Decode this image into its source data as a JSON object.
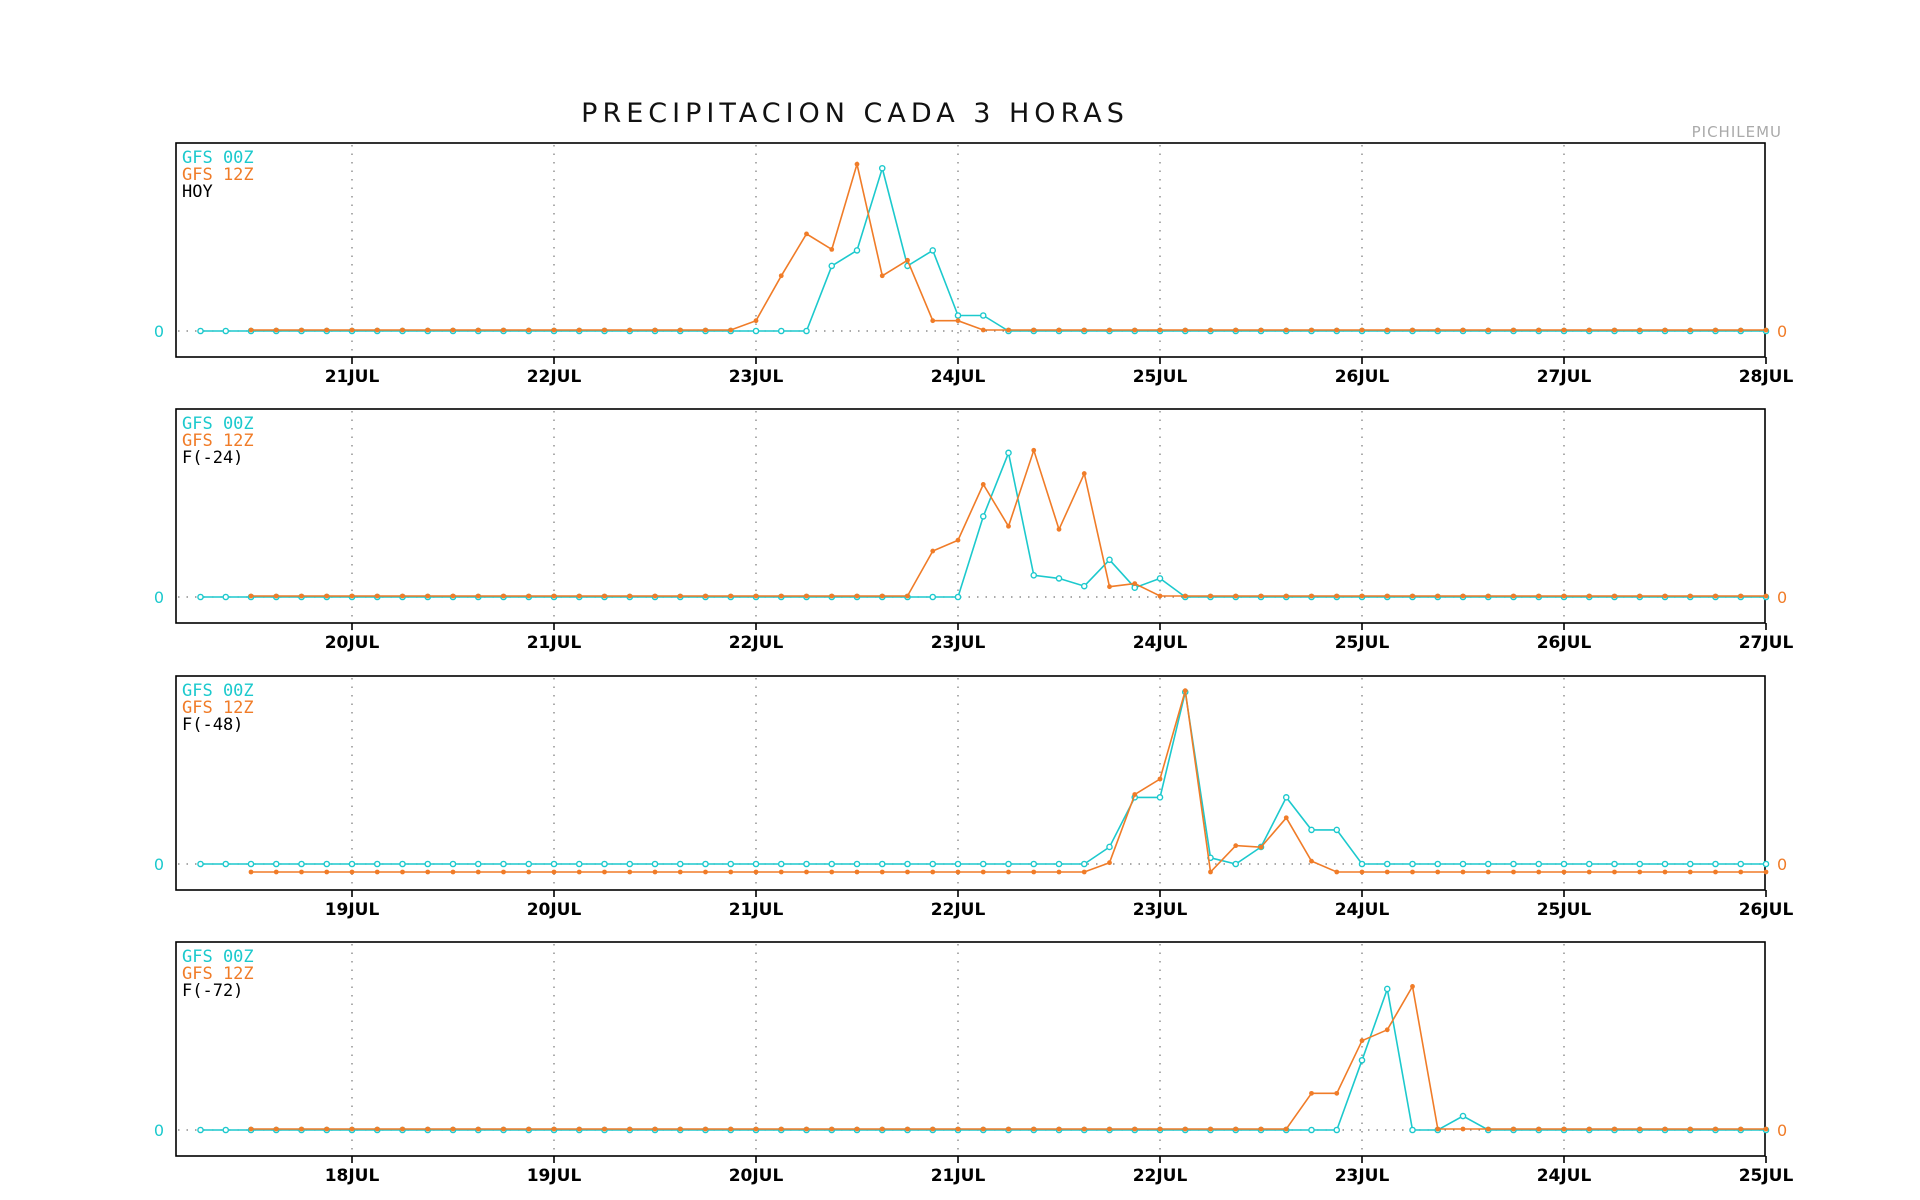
{
  "title": "PRECIPITACION CADA 3 HORAS",
  "station": "PICHILEMU",
  "colors": {
    "gfs00": "#1cc9cd",
    "gfs12": "#f07c28",
    "frame": "#000000"
  },
  "chart_data": [
    {
      "type": "line",
      "panel_label": "HOY",
      "x_ticks": [
        "21JUL",
        "22JUL",
        "23JUL",
        "24JUL",
        "25JUL",
        "26JUL",
        "27JUL",
        "28JUL"
      ],
      "ylim": [
        0,
        11
      ],
      "zero_label_left": "0",
      "zero_label_right": "0",
      "grid": "vertical dotted",
      "legend_position": "top-left",
      "series": [
        {
          "name": "GFS 00Z",
          "color": "#1cc9cd",
          "start": "20JUL 03Z",
          "step_hours": 3,
          "values": [
            0,
            0,
            0,
            0,
            0,
            0,
            0,
            0,
            0,
            0,
            0,
            0,
            0,
            0,
            0,
            0,
            0,
            0,
            0,
            0,
            0,
            0,
            0,
            0,
            0,
            0,
            4.2,
            5.2,
            10.5,
            4.2,
            5.2,
            1,
            1,
            0,
            0,
            0,
            0,
            0,
            0,
            0,
            0,
            0,
            0,
            0,
            0,
            0,
            0,
            0,
            0,
            0,
            0,
            0,
            0,
            0,
            0,
            0,
            0,
            0,
            0,
            0,
            0,
            0,
            0,
            0
          ]
        },
        {
          "name": "GFS 12Z",
          "color": "#f07c28",
          "start": "20JUL 12Z",
          "step_hours": 3,
          "values": [
            0,
            0,
            0,
            0,
            0,
            0,
            0,
            0,
            0,
            0,
            0,
            0,
            0,
            0,
            0,
            0,
            0,
            0,
            0,
            0,
            0.6,
            3.5,
            6.2,
            5.2,
            10.7,
            3.5,
            4.5,
            0.6,
            0.6,
            0,
            0,
            0,
            0,
            0,
            0,
            0,
            0,
            0,
            0,
            0,
            0,
            0,
            0,
            0,
            0,
            0,
            0,
            0,
            0,
            0,
            0,
            0,
            0,
            0,
            0,
            0,
            0,
            0,
            0,
            0,
            0
          ]
        }
      ]
    },
    {
      "type": "line",
      "panel_label": "F(-24)",
      "x_ticks": [
        "20JUL",
        "21JUL",
        "22JUL",
        "23JUL",
        "24JUL",
        "25JUL",
        "26JUL",
        "27JUL"
      ],
      "ylim": [
        0,
        11
      ],
      "zero_label_left": "0",
      "zero_label_right": "0",
      "grid": "vertical dotted",
      "legend_position": "top-left",
      "series": [
        {
          "name": "GFS 00Z",
          "color": "#1cc9cd",
          "start": "19JUL 03Z",
          "step_hours": 3,
          "values": [
            0,
            0,
            0,
            0,
            0,
            0,
            0,
            0,
            0,
            0,
            0,
            0,
            0,
            0,
            0,
            0,
            0,
            0,
            0,
            0,
            0,
            0,
            0,
            0,
            0,
            0,
            0,
            0,
            0,
            0,
            0,
            0,
            5.2,
            9.3,
            1.4,
            1.2,
            0.7,
            2.4,
            0.6,
            1.2,
            0,
            0,
            0,
            0,
            0,
            0,
            0,
            0,
            0,
            0,
            0,
            0,
            0,
            0,
            0,
            0,
            0,
            0,
            0,
            0,
            0,
            0,
            0,
            0
          ]
        },
        {
          "name": "GFS 12Z",
          "color": "#f07c28",
          "start": "19JUL 12Z",
          "step_hours": 3,
          "values": [
            0,
            0,
            0,
            0,
            0,
            0,
            0,
            0,
            0,
            0,
            0,
            0,
            0,
            0,
            0,
            0,
            0,
            0,
            0,
            0,
            0,
            0,
            0,
            0,
            0,
            0,
            0,
            2.9,
            3.6,
            7.2,
            4.5,
            9.4,
            4.3,
            7.9,
            0.6,
            0.8,
            0,
            0,
            0,
            0,
            0,
            0,
            0,
            0,
            0,
            0,
            0,
            0,
            0,
            0,
            0,
            0,
            0,
            0,
            0,
            0,
            0,
            0,
            0,
            0,
            0
          ]
        }
      ]
    },
    {
      "type": "line",
      "panel_label": "F(-48)",
      "x_ticks": [
        "19JUL",
        "20JUL",
        "21JUL",
        "22JUL",
        "23JUL",
        "24JUL",
        "25JUL",
        "26JUL"
      ],
      "ylim": [
        0,
        11
      ],
      "zero_label_left": "0",
      "zero_label_right": "0",
      "grid": "vertical dotted",
      "legend_position": "top-left",
      "series": [
        {
          "name": "GFS 00Z",
          "color": "#1cc9cd",
          "start": "18JUL 03Z",
          "step_hours": 3,
          "values": [
            0,
            0,
            0,
            0,
            0,
            0,
            0,
            0,
            0,
            0,
            0,
            0,
            0,
            0,
            0,
            0,
            0,
            0,
            0,
            0,
            0,
            0,
            0,
            0,
            0,
            0,
            0,
            0,
            0,
            0,
            0,
            0,
            0,
            0,
            0,
            0,
            0,
            1.1,
            4.3,
            4.3,
            11.1,
            0.4,
            0,
            1.1,
            4.3,
            2.2,
            2.2,
            0,
            0,
            0,
            0,
            0,
            0,
            0,
            0,
            0,
            0,
            0,
            0,
            0,
            0,
            0,
            0,
            0
          ]
        },
        {
          "name": "GFS 12Z",
          "color": "#f07c28",
          "start": "18JUL 12Z",
          "step_hours": 3,
          "values": [
            0,
            0,
            0,
            0,
            0,
            0,
            0,
            0,
            0,
            0,
            0,
            0,
            0,
            0,
            0,
            0,
            0,
            0,
            0,
            0,
            0,
            0,
            0,
            0,
            0,
            0,
            0,
            0,
            0,
            0,
            0,
            0,
            0,
            0,
            0.6,
            5,
            6,
            11.7,
            0,
            1.7,
            1.6,
            3.5,
            0.7,
            0,
            0,
            0,
            0,
            0,
            0,
            0,
            0,
            0,
            0,
            0,
            0,
            0,
            0,
            0,
            0,
            0,
            0
          ]
        }
      ]
    },
    {
      "type": "line",
      "panel_label": "F(-72)",
      "x_ticks": [
        "18JUL",
        "19JUL",
        "20JUL",
        "21JUL",
        "22JUL",
        "23JUL",
        "24JUL",
        "25JUL"
      ],
      "ylim": [
        0,
        11
      ],
      "zero_label_left": "0",
      "zero_label_right": "0",
      "grid": "vertical dotted",
      "legend_position": "top-left",
      "series": [
        {
          "name": "GFS 00Z",
          "color": "#1cc9cd",
          "start": "17JUL 03Z",
          "step_hours": 3,
          "values": [
            0,
            0,
            0,
            0,
            0,
            0,
            0,
            0,
            0,
            0,
            0,
            0,
            0,
            0,
            0,
            0,
            0,
            0,
            0,
            0,
            0,
            0,
            0,
            0,
            0,
            0,
            0,
            0,
            0,
            0,
            0,
            0,
            0,
            0,
            0,
            0,
            0,
            0,
            0,
            0,
            0,
            0,
            0,
            0,
            0,
            0,
            0,
            4.5,
            9.1,
            0,
            0,
            0.9,
            0,
            0,
            0,
            0,
            0,
            0,
            0,
            0,
            0,
            0,
            0,
            0
          ]
        },
        {
          "name": "GFS 12Z",
          "color": "#f07c28",
          "start": "17JUL 12Z",
          "step_hours": 3,
          "values": [
            0,
            0,
            0,
            0,
            0,
            0,
            0,
            0,
            0,
            0,
            0,
            0,
            0,
            0,
            0,
            0,
            0,
            0,
            0,
            0,
            0,
            0,
            0,
            0,
            0,
            0,
            0,
            0,
            0,
            0,
            0,
            0,
            0,
            0,
            0,
            0,
            0,
            0,
            0,
            0,
            0,
            0,
            2.3,
            2.3,
            5.7,
            6.4,
            9.2,
            0,
            0,
            0,
            0,
            0,
            0,
            0,
            0,
            0,
            0,
            0,
            0,
            0,
            0
          ]
        }
      ]
    }
  ]
}
